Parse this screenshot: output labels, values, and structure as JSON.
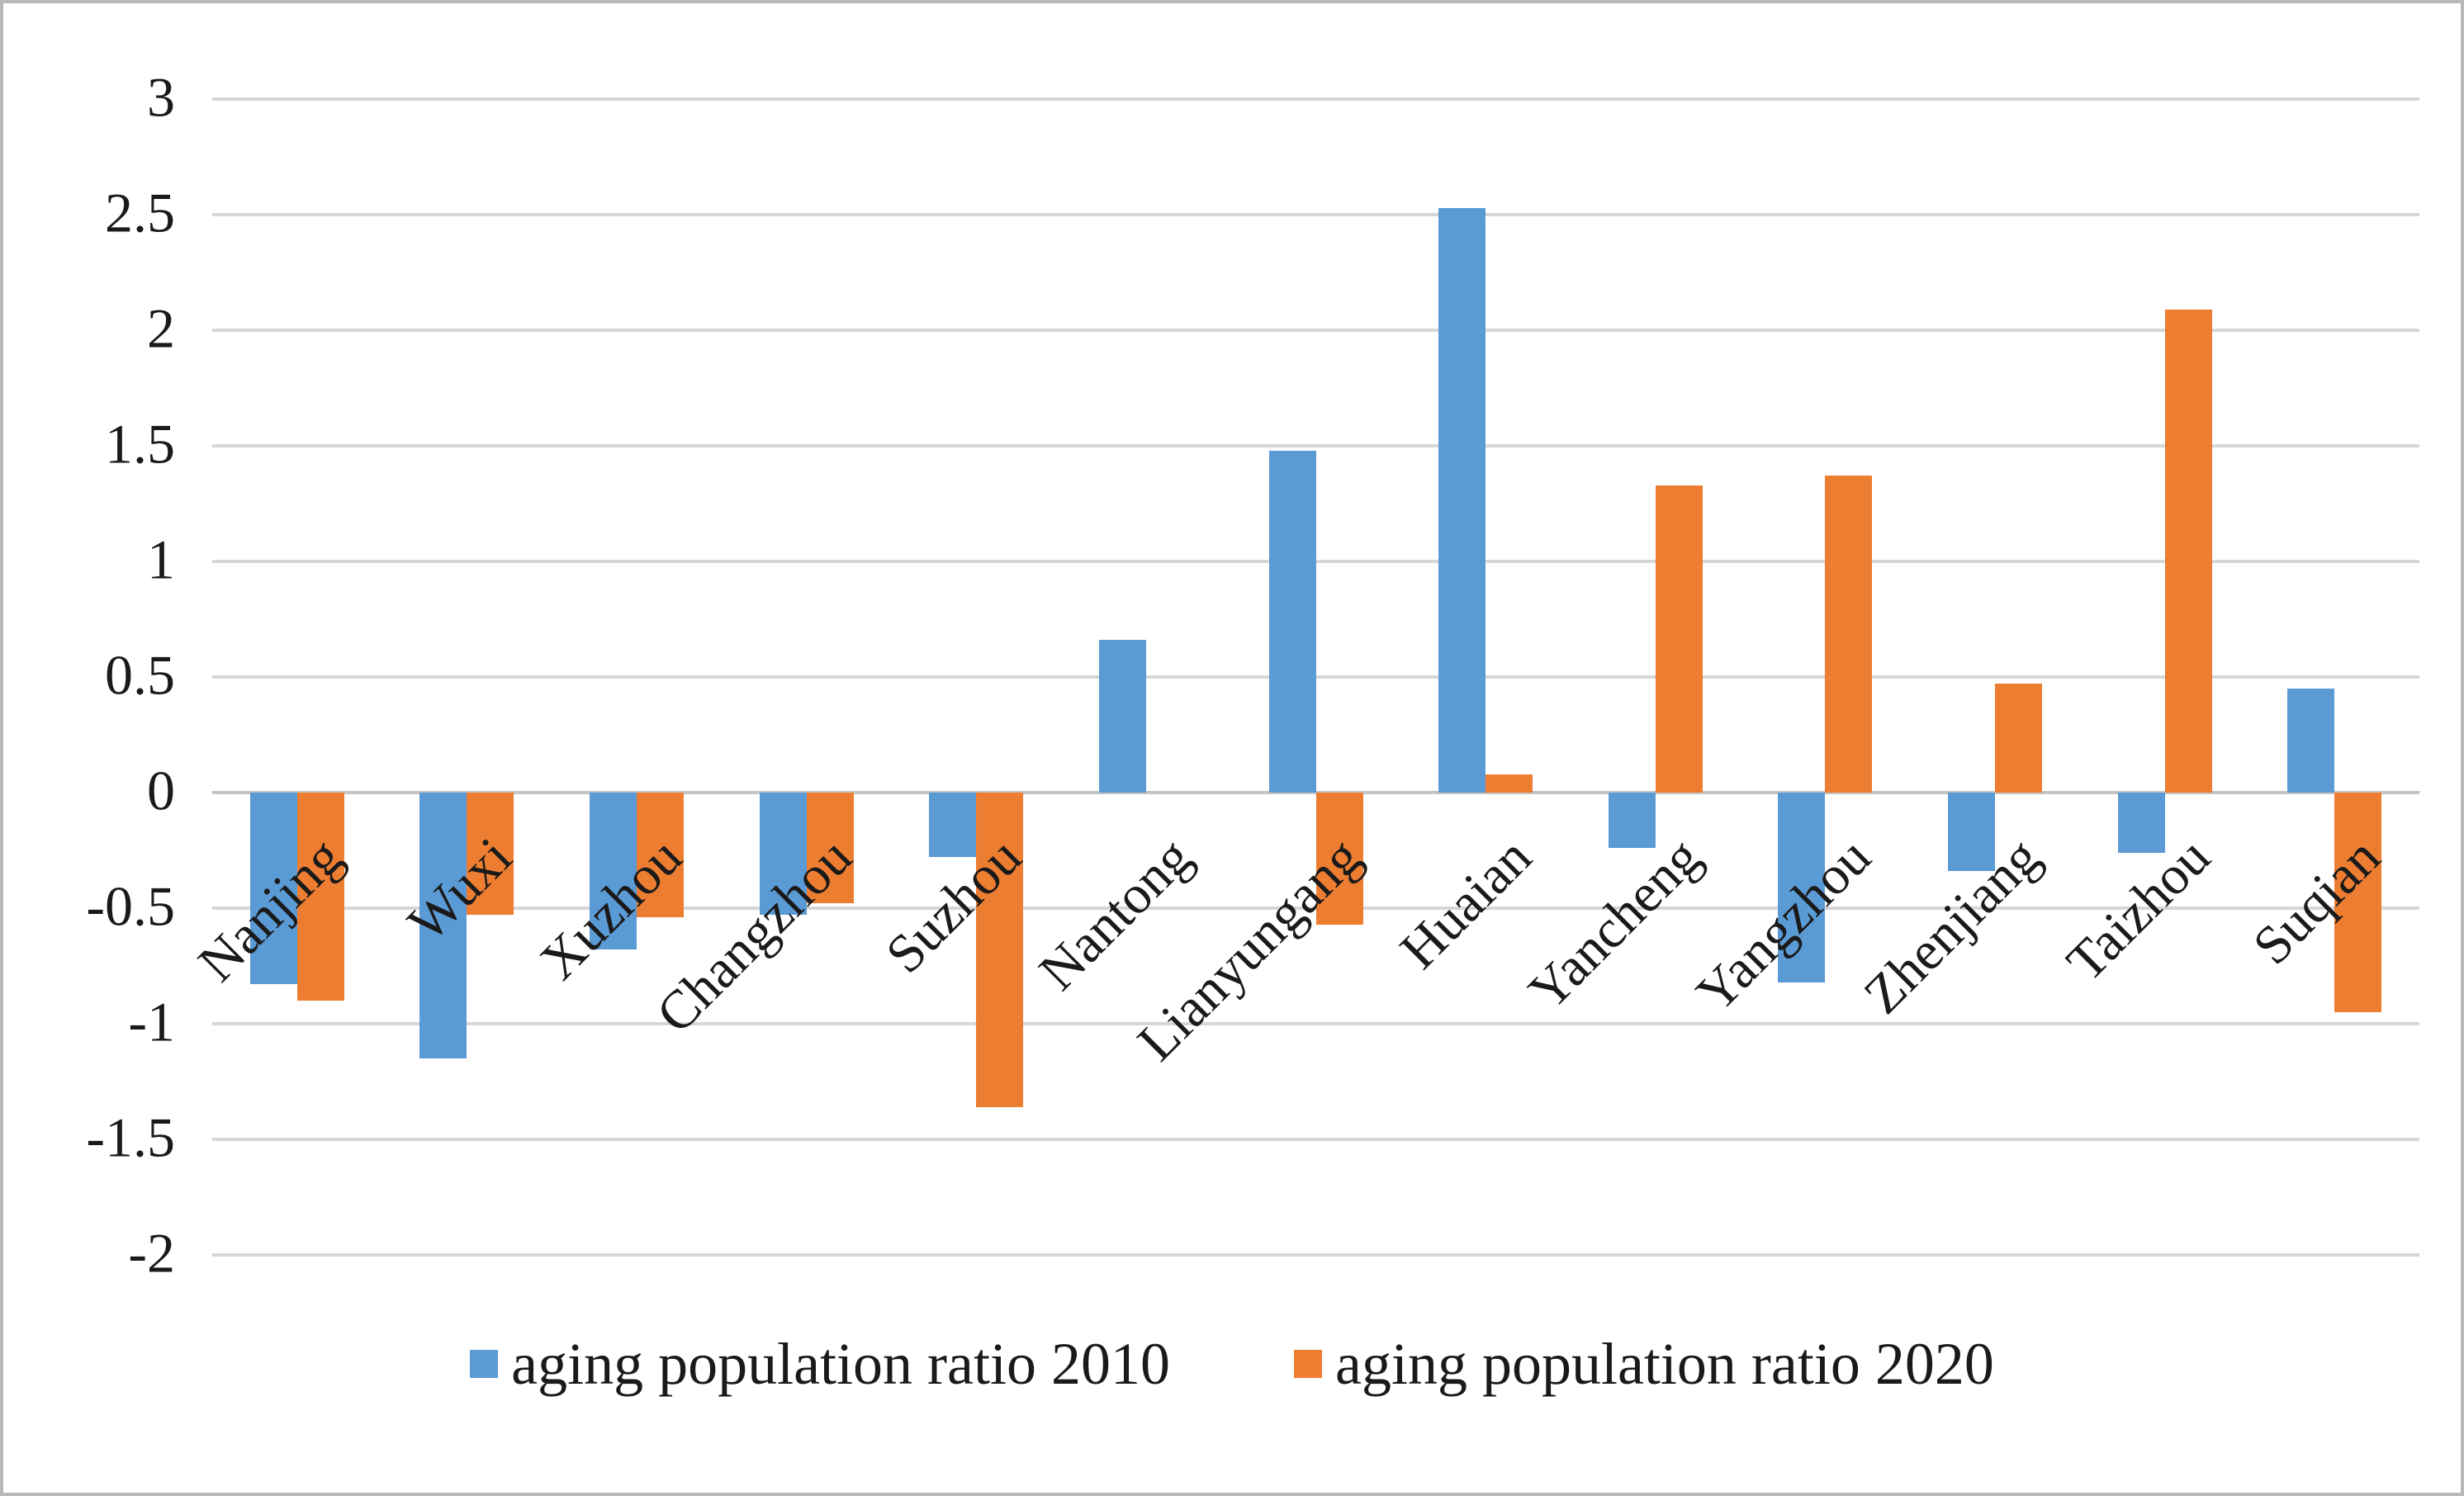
{
  "chart_data": {
    "type": "bar",
    "title": "",
    "xlabel": "",
    "ylabel": "",
    "categories": [
      "Nanjing",
      "Wuxi",
      "Xuzhou",
      "Changzhou",
      "Suzhou",
      "Nantong",
      "Lianyungang",
      "Huaian",
      "Yancheng",
      "Yangzhou",
      "Zhenjiang",
      "Taizhou",
      "Suqian"
    ],
    "series": [
      {
        "name": "aging population ratio 2010",
        "color": "#5B9BD5",
        "values": [
          -0.83,
          -1.15,
          -0.68,
          -0.53,
          -0.28,
          0.66,
          1.48,
          2.53,
          -0.24,
          -0.82,
          -0.34,
          -0.26,
          0.45
        ]
      },
      {
        "name": "aging population ratio 2020",
        "color": "#ED7D31",
        "values": [
          -0.9,
          -0.53,
          -0.54,
          -0.48,
          -1.36,
          0.0,
          -0.57,
          0.08,
          1.33,
          1.37,
          0.47,
          2.09,
          -0.95
        ]
      }
    ],
    "ylim": [
      -2,
      3
    ],
    "ytick_step": 0.5,
    "ytick_labels": [
      "3",
      "2.5",
      "2",
      "1.5",
      "1",
      "0.5",
      "0",
      "-0.5",
      "-1",
      "-1.5",
      "-2"
    ],
    "grid": true,
    "gridline_color": "#d6d6d6",
    "legend_position": "bottom"
  }
}
